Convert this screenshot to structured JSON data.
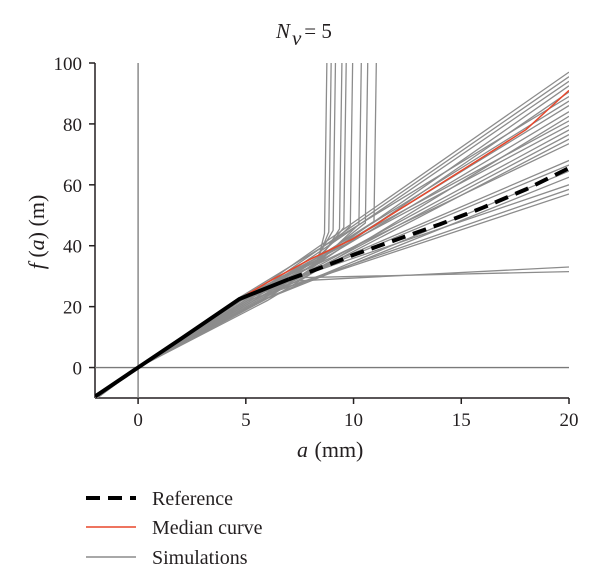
{
  "chart_data": {
    "type": "line",
    "title": {
      "main": "N",
      "sub": "v",
      "rest": " = 5"
    },
    "xlabel": {
      "italic": "a",
      "rest": " (mm)"
    },
    "ylabel": {
      "italic": "f",
      "paren_open": " (",
      "italic2": "a",
      "rest": ") (m)"
    },
    "xlim": [
      -2,
      20
    ],
    "ylim": [
      -10,
      100
    ],
    "xticks": [
      "0",
      "5",
      "10",
      "15",
      "20"
    ],
    "yticks": [
      "0",
      "20",
      "40",
      "60",
      "80",
      "100"
    ],
    "xtick_values": [
      0,
      5,
      10,
      15,
      20
    ],
    "ytick_values": [
      0,
      20,
      40,
      60,
      80,
      100
    ],
    "grid": false,
    "legend_position": "bottom-left",
    "colors": {
      "reference": "#000000",
      "median": "#e8462a",
      "simulations": "#8c8c8c",
      "axis": "#7a7a7a"
    },
    "series": [
      {
        "name": "Reference",
        "style": "dashed",
        "x": [
          -2,
          0,
          2,
          4.7,
          7,
          8,
          9,
          10,
          12,
          14,
          16,
          18,
          20
        ],
        "y": [
          -9.5,
          0,
          9.5,
          22.5,
          29,
          31.5,
          34.2,
          37,
          42,
          47,
          52.5,
          58.5,
          65.5
        ]
      },
      {
        "name": "Median curve",
        "style": "solid",
        "x": [
          -2,
          0,
          4.7,
          6,
          8,
          10,
          12,
          14,
          16,
          18,
          20
        ],
        "y": [
          -9.5,
          0,
          22.5,
          28,
          35.6,
          42.3,
          51.3,
          60.2,
          69.1,
          78.1,
          91
        ]
      },
      {
        "name": "Simulations",
        "style": "solid",
        "x": [],
        "y": []
      }
    ],
    "simulations": {
      "linear_endpoints": [
        97,
        95.5,
        94,
        92.5,
        90.5,
        89,
        87.5,
        86,
        84,
        82.5,
        81,
        79.5,
        78,
        76.5,
        75,
        73.5,
        68,
        66.5,
        64.5,
        62.5,
        60,
        58.5,
        57
      ],
      "flat_endpoints": [
        33,
        31.5
      ],
      "vertical_x": [
        8.8,
        9.0,
        9.2,
        9.5,
        9.7,
        10.0,
        10.4,
        10.7,
        11.1
      ]
    }
  }
}
